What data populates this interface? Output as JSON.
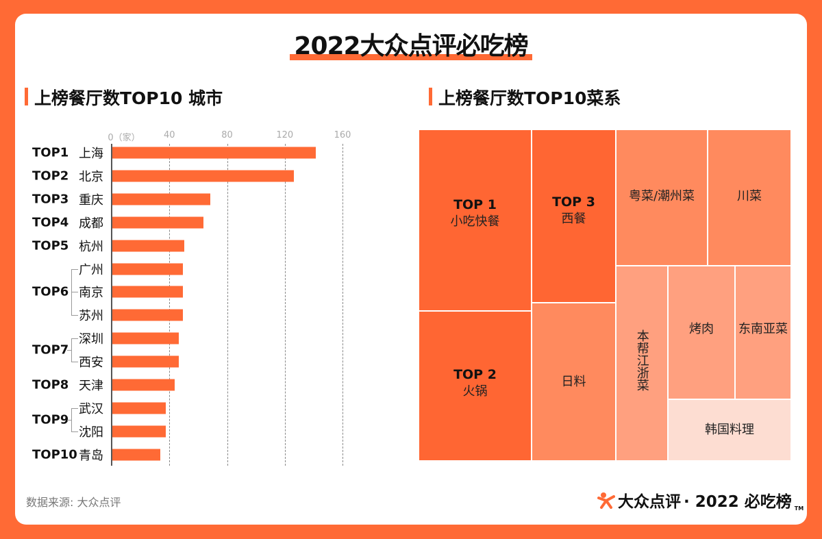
{
  "title": "2022大众点评必吃榜",
  "source": "数据来源: 大众点评",
  "logo": {
    "brand": "大众点评",
    "text": "· 2022 必吃榜",
    "tm": "TM"
  },
  "colors": {
    "accent": "#FF6A35",
    "treemap": [
      "#FF6633",
      "#FF8A5E",
      "#FFA07F",
      "#FDDDD2"
    ]
  },
  "chart_data": [
    {
      "type": "bar",
      "orientation": "horizontal",
      "title": "上榜餐厅数TOP10 城市",
      "xlabel": "家",
      "xlim": [
        0,
        160
      ],
      "xticks": [
        "0（家）",
        "40",
        "80",
        "120",
        "160"
      ],
      "grid": true,
      "groups": [
        {
          "rank": "TOP1",
          "cities": [
            "上海"
          ]
        },
        {
          "rank": "TOP2",
          "cities": [
            "北京"
          ]
        },
        {
          "rank": "TOP3",
          "cities": [
            "重庆"
          ]
        },
        {
          "rank": "TOP4",
          "cities": [
            "成都"
          ]
        },
        {
          "rank": "TOP5",
          "cities": [
            "杭州"
          ]
        },
        {
          "rank": "TOP6",
          "cities": [
            "广州",
            "南京",
            "苏州"
          ]
        },
        {
          "rank": "TOP7",
          "cities": [
            "深圳",
            "西安"
          ]
        },
        {
          "rank": "TOP8",
          "cities": [
            "天津"
          ]
        },
        {
          "rank": "TOP9",
          "cities": [
            "武汉",
            "沈阳"
          ]
        },
        {
          "rank": "TOP10",
          "cities": [
            "青岛"
          ]
        }
      ],
      "categories": [
        "上海",
        "北京",
        "重庆",
        "成都",
        "杭州",
        "广州",
        "南京",
        "苏州",
        "深圳",
        "西安",
        "天津",
        "武汉",
        "沈阳",
        "青岛"
      ],
      "values": [
        141,
        126,
        68,
        63,
        50,
        49,
        49,
        49,
        46,
        46,
        43,
        37,
        37,
        33
      ]
    },
    {
      "type": "treemap",
      "title": "上榜餐厅数TOP10菜系",
      "items": [
        {
          "rank": "TOP 1",
          "label": "小吃快餐",
          "shade": 0
        },
        {
          "rank": "TOP 2",
          "label": "火锅",
          "shade": 0
        },
        {
          "rank": "TOP 3",
          "label": "西餐",
          "shade": 0
        },
        {
          "label": "日料",
          "shade": 1
        },
        {
          "label": "粤菜/潮州菜",
          "shade": 1
        },
        {
          "label": "川菜",
          "shade": 1
        },
        {
          "label": "本帮江浙菜",
          "shade": 2
        },
        {
          "label": "烤肉",
          "shade": 2
        },
        {
          "label": "东南亚菜",
          "shade": 2
        },
        {
          "label": "韩国料理",
          "shade": 3
        }
      ]
    }
  ]
}
